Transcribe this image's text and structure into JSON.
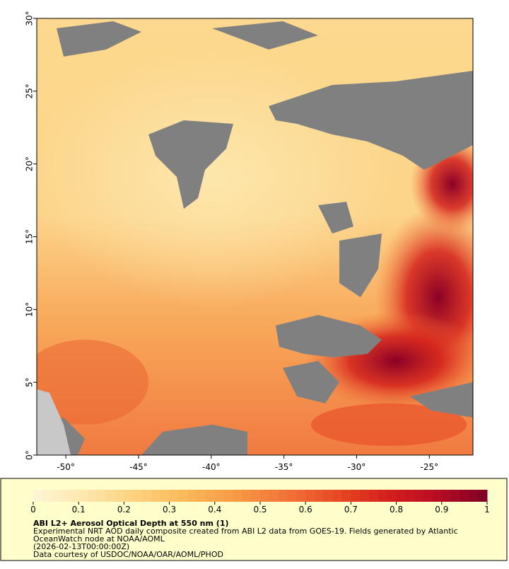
{
  "map": {
    "xlim": [
      -52,
      -22
    ],
    "ylim": [
      0,
      30
    ],
    "xticks": [
      {
        "value": -50,
        "label": "-50°"
      },
      {
        "value": -45,
        "label": "-45°"
      },
      {
        "value": -40,
        "label": "-40°"
      },
      {
        "value": -35,
        "label": "-35°"
      },
      {
        "value": -30,
        "label": "-30°"
      },
      {
        "value": -25,
        "label": "-25°"
      }
    ],
    "yticks": [
      {
        "value": 0,
        "label": "0°"
      },
      {
        "value": 5,
        "label": "5°"
      },
      {
        "value": 10,
        "label": "10°"
      },
      {
        "value": 15,
        "label": "15°"
      },
      {
        "value": 20,
        "label": "20°"
      },
      {
        "value": 25,
        "label": "25°"
      },
      {
        "value": 30,
        "label": "30°"
      }
    ]
  },
  "legend": {
    "title": "ABI L2+ Aerosol Optical Depth at 550 nm (1)",
    "lines": [
      "Experimental NRT AOD daily composite created from ABI L2 data from GOES-19. Fields generated by Atlantic",
      "OceanWatch node at NOAA/AOML",
      "(2026-02-13T00:00:00Z)",
      "Data courtesy of USDOC/NOAA/OAR/AOML/PHOD"
    ],
    "colorbar": {
      "lim": [
        0,
        1
      ],
      "ticks": [
        0,
        0.1,
        0.2,
        0.3,
        0.4,
        0.5,
        0.6,
        0.7,
        0.8,
        0.9,
        1
      ],
      "colors": [
        "#fff5d8",
        "#fde7ad",
        "#fcd27f",
        "#fbb95a",
        "#f79a45",
        "#f27438",
        "#e84a25",
        "#d6201c",
        "#b80d24",
        "#7f0026"
      ]
    }
  }
}
